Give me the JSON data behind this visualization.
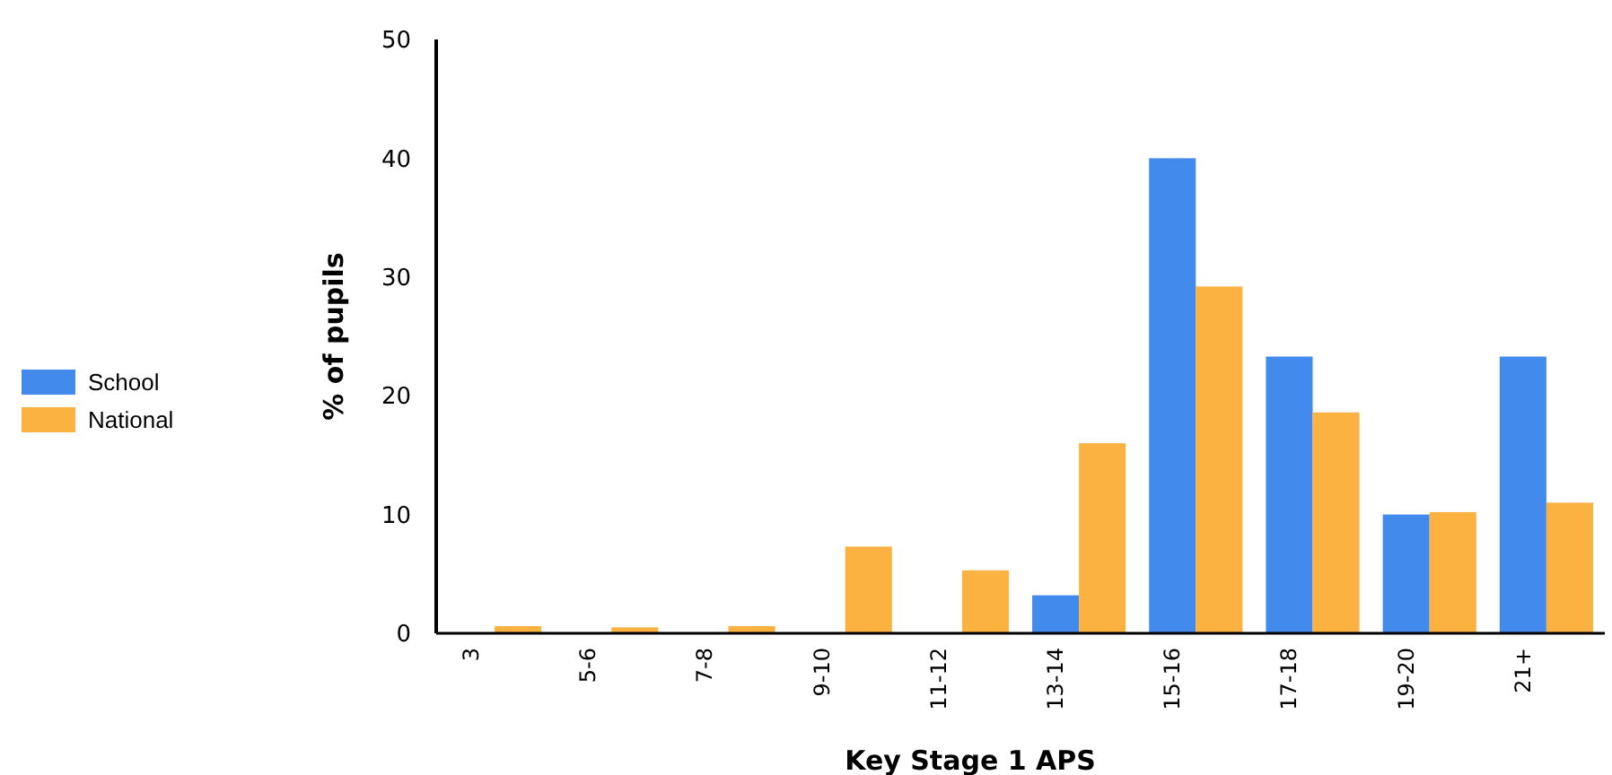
{
  "chart_data": {
    "type": "bar",
    "xlabel": "Key Stage 1 APS",
    "ylabel": "% of pupils",
    "categories": [
      "3",
      "5-6",
      "7-8",
      "9-10",
      "11-12",
      "13-14",
      "15-16",
      "17-18",
      "19-20",
      "21+"
    ],
    "series": [
      {
        "name": "School",
        "color": "#428bed",
        "values": [
          0,
          0,
          0,
          0,
          0,
          3.2,
          40,
          23.3,
          10,
          23.3
        ]
      },
      {
        "name": "National",
        "color": "#fbb241",
        "values": [
          0.6,
          0.5,
          0.6,
          7.3,
          5.3,
          16,
          29.2,
          18.6,
          10.2,
          11
        ]
      }
    ],
    "ylim": [
      0,
      50
    ],
    "yticks": [
      0,
      10,
      20,
      30,
      40,
      50
    ],
    "legend": "left",
    "grid": false
  }
}
